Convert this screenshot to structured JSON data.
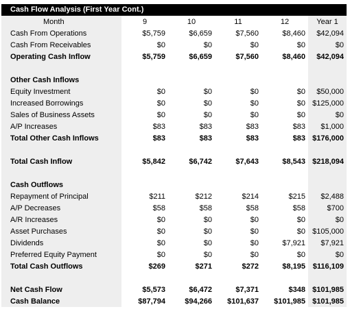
{
  "title": "Cash Flow Analysis (First Year Cont.)",
  "header": {
    "label": "Month",
    "cols": [
      "9",
      "10",
      "11",
      "12",
      "Year 1"
    ]
  },
  "rows": [
    {
      "label": "Cash From Operations",
      "values": [
        "$5,759",
        "$6,659",
        "$7,560",
        "$8,460",
        "$42,094"
      ],
      "bold": false
    },
    {
      "label": "Cash From Receivables",
      "values": [
        "$0",
        "$0",
        "$0",
        "$0",
        "$0"
      ],
      "bold": false
    },
    {
      "label": "Operating Cash Inflow",
      "values": [
        "$5,759",
        "$6,659",
        "$7,560",
        "$8,460",
        "$42,094"
      ],
      "bold": true
    },
    {
      "label": "",
      "values": [
        "",
        "",
        "",
        "",
        ""
      ],
      "bold": false,
      "spacer": true
    },
    {
      "label": "Other Cash Inflows",
      "values": [
        "",
        "",
        "",
        "",
        ""
      ],
      "bold": true
    },
    {
      "label": "Equity Investment",
      "values": [
        "$0",
        "$0",
        "$0",
        "$0",
        "$50,000"
      ],
      "bold": false
    },
    {
      "label": "Increased Borrowings",
      "values": [
        "$0",
        "$0",
        "$0",
        "$0",
        "$125,000"
      ],
      "bold": false
    },
    {
      "label": "Sales of Business Assets",
      "values": [
        "$0",
        "$0",
        "$0",
        "$0",
        "$0"
      ],
      "bold": false
    },
    {
      "label": "A/P Increases",
      "values": [
        "$83",
        "$83",
        "$83",
        "$83",
        "$1,000"
      ],
      "bold": false
    },
    {
      "label": "Total Other Cash Inflows",
      "values": [
        "$83",
        "$83",
        "$83",
        "$83",
        "$176,000"
      ],
      "bold": true
    },
    {
      "label": "",
      "values": [
        "",
        "",
        "",
        "",
        ""
      ],
      "bold": false,
      "spacer": true
    },
    {
      "label": "Total Cash Inflow",
      "values": [
        "$5,842",
        "$6,742",
        "$7,643",
        "$8,543",
        "$218,094"
      ],
      "bold": true
    },
    {
      "label": "",
      "values": [
        "",
        "",
        "",
        "",
        ""
      ],
      "bold": false,
      "spacer": true
    },
    {
      "label": "Cash Outflows",
      "values": [
        "",
        "",
        "",
        "",
        ""
      ],
      "bold": true
    },
    {
      "label": "Repayment of Principal",
      "values": [
        "$211",
        "$212",
        "$214",
        "$215",
        "$2,488"
      ],
      "bold": false
    },
    {
      "label": "A/P Decreases",
      "values": [
        "$58",
        "$58",
        "$58",
        "$58",
        "$700"
      ],
      "bold": false
    },
    {
      "label": "A/R Increases",
      "values": [
        "$0",
        "$0",
        "$0",
        "$0",
        "$0"
      ],
      "bold": false
    },
    {
      "label": "Asset Purchases",
      "values": [
        "$0",
        "$0",
        "$0",
        "$0",
        "$105,000"
      ],
      "bold": false
    },
    {
      "label": "Dividends",
      "values": [
        "$0",
        "$0",
        "$0",
        "$7,921",
        "$7,921"
      ],
      "bold": false
    },
    {
      "label": "Preferred Equity Payment",
      "values": [
        "$0",
        "$0",
        "$0",
        "$0",
        "$0"
      ],
      "bold": false
    },
    {
      "label": "Total Cash Outflows",
      "values": [
        "$269",
        "$271",
        "$272",
        "$8,195",
        "$116,109"
      ],
      "bold": true
    },
    {
      "label": "",
      "values": [
        "",
        "",
        "",
        "",
        ""
      ],
      "bold": false,
      "spacer": true
    },
    {
      "label": "Net Cash Flow",
      "values": [
        "$5,573",
        "$6,472",
        "$7,371",
        "$348",
        "$101,985"
      ],
      "bold": true
    },
    {
      "label": "Cash Balance",
      "values": [
        "$87,794",
        "$94,266",
        "$101,637",
        "$101,985",
        "$101,985"
      ],
      "bold": true
    }
  ]
}
